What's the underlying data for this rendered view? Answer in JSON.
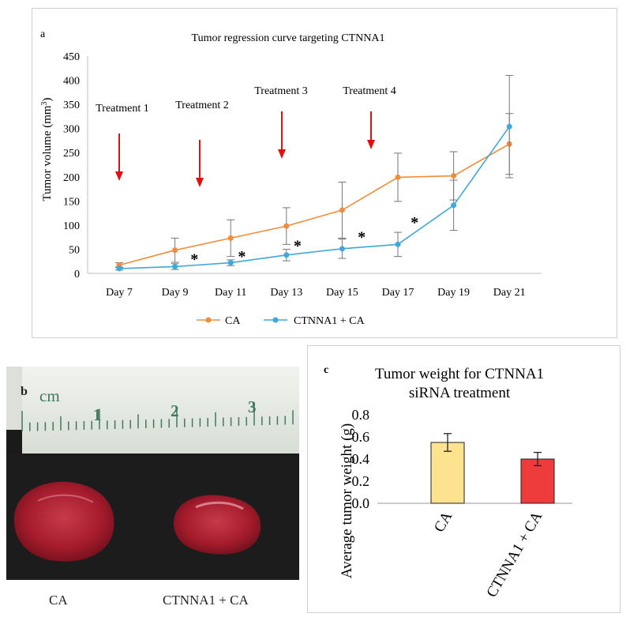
{
  "panel_a": {
    "letter": "a",
    "treatments": [
      "Treatment 1",
      "Treatment 2",
      "Treatment 3",
      "Treatment 4"
    ],
    "significance_marker": "*",
    "colors": {
      "ca": "#f08c3c",
      "ctnna1": "#3fa8dc",
      "arrow": "#e01010",
      "error": "#777777"
    }
  },
  "panel_b": {
    "letter": "b",
    "ruler_unit": "cm",
    "ruler_numbers": [
      "1",
      "2",
      "3"
    ],
    "labels": [
      "CA",
      "CTNNA1 + CA"
    ]
  },
  "panel_c": {
    "letter": "c"
  },
  "chart_data": [
    {
      "type": "line",
      "title": "Tumor regression curve targeting  CTNNA1",
      "xlabel": "",
      "ylabel": "Tumor volume (mm3)",
      "ylabel_main": "Tumor volume (mm",
      "ylabel_sup": "3",
      "ylabel_tail": ")",
      "categories": [
        "Day 7",
        "Day 9",
        "Day 11",
        "Day 13",
        "Day 15",
        "Day 17",
        "Day 19",
        "Day 21"
      ],
      "ylim": [
        0,
        450
      ],
      "yticks": [
        "0",
        "50",
        "100",
        "150",
        "200",
        "250",
        "300",
        "350",
        "400",
        "450"
      ],
      "legend_position": "bottom",
      "series": [
        {
          "name": "CA",
          "values": [
            17,
            48,
            73,
            98,
            131,
            199,
            202,
            268
          ],
          "errors": [
            5,
            25,
            38,
            38,
            58,
            50,
            50,
            63
          ]
        },
        {
          "name": "CTNNA1 + CA",
          "values": [
            10,
            14,
            22,
            38,
            51,
            60,
            141,
            304
          ],
          "errors": [
            3,
            6,
            6,
            12,
            20,
            25,
            52,
            106
          ]
        }
      ]
    },
    {
      "type": "bar",
      "title": "Tumor weight for CTNNA1 siRNA treatment",
      "title_lines": [
        "Tumor weight for CTNNA1",
        "siRNA treatment"
      ],
      "xlabel": "",
      "ylabel": "Average tumor weight  (g)",
      "categories": [
        "CA",
        "CTNNA1 + CA"
      ],
      "values": [
        0.55,
        0.4
      ],
      "errors": [
        0.08,
        0.06
      ],
      "colors": [
        "#fde38f",
        "#ee3b3b"
      ],
      "ylim": [
        0,
        0.8
      ],
      "yticks": [
        "0.0",
        "0.2",
        "0.4",
        "0.6",
        "0.8"
      ]
    }
  ]
}
